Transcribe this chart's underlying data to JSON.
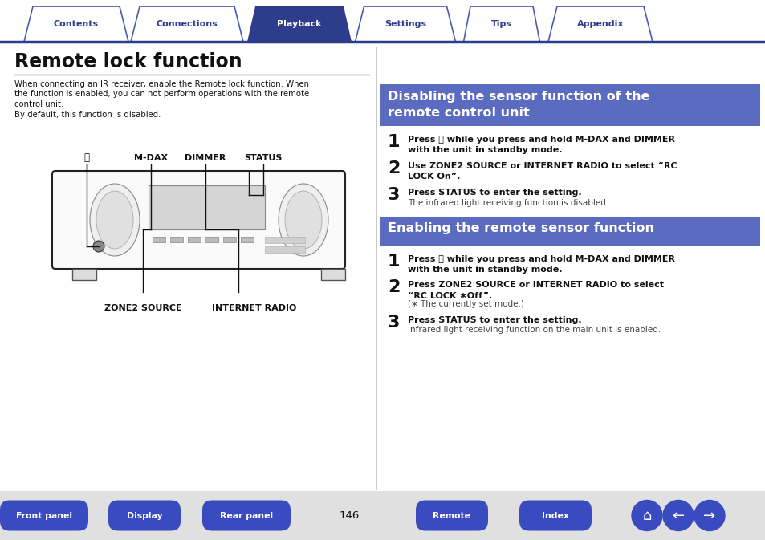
{
  "bg_color": "#ffffff",
  "tab_color_active": "#2e3c8c",
  "tab_color_inactive": "#ffffff",
  "tab_border_color": "#4a5ab0",
  "tab_labels": [
    "Contents",
    "Connections",
    "Playback",
    "Settings",
    "Tips",
    "Appendix"
  ],
  "tab_active_index": 2,
  "title": "Remote lock function",
  "intro_lines": [
    "When connecting an IR receiver, enable the Remote lock function. When",
    "the function is enabled, you can not perform operations with the remote",
    "control unit.",
    "By default, this function is disabled."
  ],
  "section1_title": "Disabling the sensor function of the\nremote control unit",
  "section1_bg": "#5b6bbf",
  "section2_title": "Enabling the remote sensor function",
  "section2_bg": "#5b6bbf",
  "bottom_buttons": [
    "Front panel",
    "Display",
    "Rear panel",
    "Remote",
    "Index"
  ],
  "page_number": "146",
  "button_bg": "#3a4abf",
  "divider_color": "#2e3c8c"
}
